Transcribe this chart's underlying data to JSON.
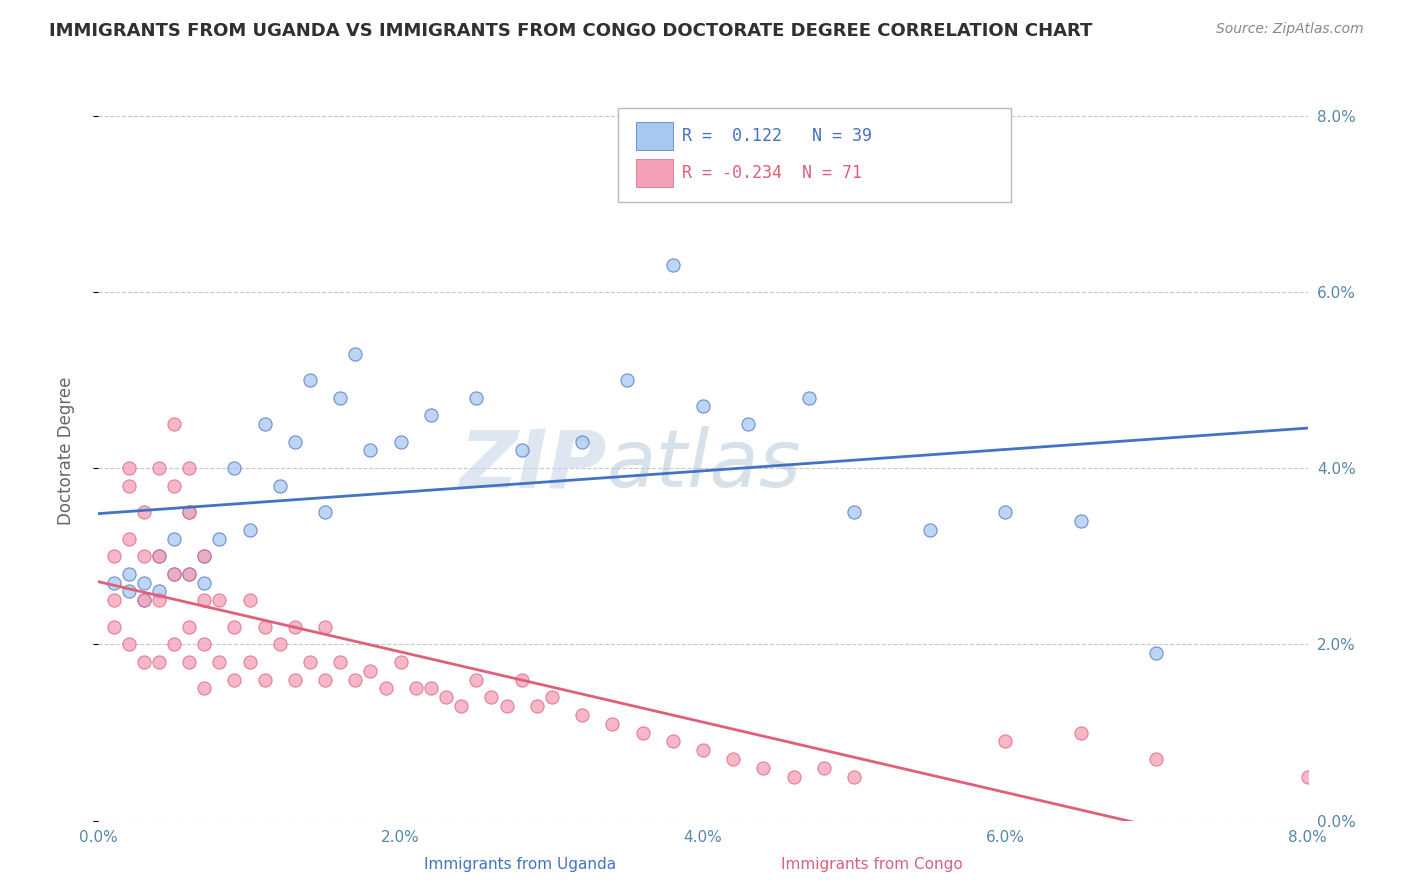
{
  "title": "IMMIGRANTS FROM UGANDA VS IMMIGRANTS FROM CONGO DOCTORATE DEGREE CORRELATION CHART",
  "source_text": "Source: ZipAtlas.com",
  "xlabel_uganda": "Immigrants from Uganda",
  "xlabel_congo": "Immigrants from Congo",
  "ylabel": "Doctorate Degree",
  "xlim": [
    0.0,
    0.08
  ],
  "ylim": [
    0.0,
    0.084
  ],
  "x_ticks": [
    0.0,
    0.02,
    0.04,
    0.06,
    0.08
  ],
  "x_tick_labels": [
    "0.0%",
    "2.0%",
    "4.0%",
    "6.0%",
    "8.0%"
  ],
  "y_ticks": [
    0.0,
    0.02,
    0.04,
    0.06,
    0.08
  ],
  "y_tick_labels": [
    "0.0%",
    "2.0%",
    "4.0%",
    "6.0%",
    "8.0%"
  ],
  "legend_r1": "R =  0.122",
  "legend_n1": "N = 39",
  "legend_r2": "R = -0.234",
  "legend_n2": "N = 71",
  "color_uganda": "#A8C8F0",
  "color_congo": "#F4A0B8",
  "line_color_uganda": "#4472C4",
  "line_color_congo": "#E0607A",
  "watermark_zip": "ZIP",
  "watermark_atlas": "atlas",
  "background_color": "#FFFFFF",
  "grid_color": "#BBBBBB",
  "title_color": "#303030",
  "uganda_x": [
    0.001,
    0.002,
    0.002,
    0.003,
    0.003,
    0.004,
    0.004,
    0.005,
    0.005,
    0.006,
    0.006,
    0.007,
    0.007,
    0.008,
    0.009,
    0.01,
    0.011,
    0.012,
    0.013,
    0.014,
    0.015,
    0.016,
    0.017,
    0.018,
    0.02,
    0.022,
    0.025,
    0.028,
    0.032,
    0.035,
    0.038,
    0.04,
    0.043,
    0.047,
    0.05,
    0.055,
    0.06,
    0.065,
    0.07
  ],
  "uganda_y": [
    0.027,
    0.026,
    0.028,
    0.025,
    0.027,
    0.026,
    0.03,
    0.028,
    0.032,
    0.035,
    0.028,
    0.027,
    0.03,
    0.032,
    0.04,
    0.033,
    0.045,
    0.038,
    0.043,
    0.05,
    0.035,
    0.048,
    0.053,
    0.042,
    0.043,
    0.046,
    0.048,
    0.042,
    0.043,
    0.05,
    0.063,
    0.047,
    0.045,
    0.048,
    0.035,
    0.033,
    0.035,
    0.034,
    0.019
  ],
  "congo_x": [
    0.001,
    0.001,
    0.001,
    0.002,
    0.002,
    0.002,
    0.002,
    0.003,
    0.003,
    0.003,
    0.003,
    0.004,
    0.004,
    0.004,
    0.004,
    0.005,
    0.005,
    0.005,
    0.005,
    0.006,
    0.006,
    0.006,
    0.006,
    0.006,
    0.007,
    0.007,
    0.007,
    0.007,
    0.008,
    0.008,
    0.009,
    0.009,
    0.01,
    0.01,
    0.011,
    0.011,
    0.012,
    0.013,
    0.013,
    0.014,
    0.015,
    0.015,
    0.016,
    0.017,
    0.018,
    0.019,
    0.02,
    0.021,
    0.022,
    0.023,
    0.024,
    0.025,
    0.026,
    0.027,
    0.028,
    0.029,
    0.03,
    0.032,
    0.034,
    0.036,
    0.038,
    0.04,
    0.042,
    0.044,
    0.046,
    0.048,
    0.05,
    0.06,
    0.065,
    0.07,
    0.08
  ],
  "congo_y": [
    0.03,
    0.025,
    0.022,
    0.04,
    0.038,
    0.032,
    0.02,
    0.035,
    0.03,
    0.025,
    0.018,
    0.04,
    0.03,
    0.025,
    0.018,
    0.045,
    0.038,
    0.028,
    0.02,
    0.04,
    0.035,
    0.028,
    0.022,
    0.018,
    0.03,
    0.025,
    0.02,
    0.015,
    0.025,
    0.018,
    0.022,
    0.016,
    0.025,
    0.018,
    0.022,
    0.016,
    0.02,
    0.022,
    0.016,
    0.018,
    0.022,
    0.016,
    0.018,
    0.016,
    0.017,
    0.015,
    0.018,
    0.015,
    0.015,
    0.014,
    0.013,
    0.016,
    0.014,
    0.013,
    0.016,
    0.013,
    0.014,
    0.012,
    0.011,
    0.01,
    0.009,
    0.008,
    0.007,
    0.006,
    0.005,
    0.006,
    0.005,
    0.009,
    0.01,
    0.007,
    0.005
  ]
}
